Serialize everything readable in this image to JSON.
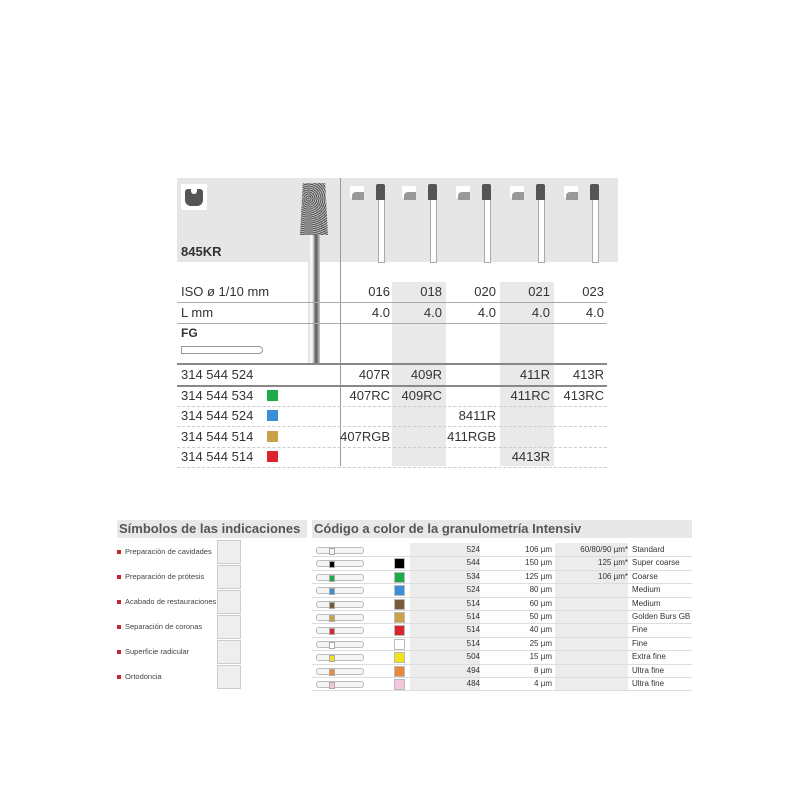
{
  "product": {
    "name": "845KR",
    "iso_label": "ISO ø 1/10 mm",
    "length_label": "L mm",
    "shank": "FG",
    "sizes": [
      "016",
      "018",
      "020",
      "021",
      "023"
    ],
    "lengths": [
      "4.0",
      "4.0",
      "4.0",
      "4.0",
      "4.0"
    ],
    "rows": [
      {
        "code": "314 544 524",
        "color": "",
        "cells": [
          "407R",
          "409R",
          "",
          "411R",
          "413R"
        ]
      },
      {
        "code": "314 544 534",
        "color": "#1faa4a",
        "cells": [
          "407RC",
          "409RC",
          "",
          "411RC",
          "413RC"
        ]
      },
      {
        "code": "314 544 524",
        "color": "#3a8fd6",
        "cells": [
          "",
          "",
          "8411R",
          "",
          ""
        ]
      },
      {
        "code": "314 544 514",
        "color": "#c9a24a",
        "cells": [
          "407RGB",
          "",
          "411RGB",
          "",
          ""
        ]
      },
      {
        "code": "314 544 514",
        "color": "#d9232d",
        "cells": [
          "",
          "",
          "",
          "4413R",
          ""
        ]
      }
    ]
  },
  "indications": {
    "title": "Símbolos de las indicaciones",
    "items": [
      "Preparación de cavidades",
      "Preparación de prótesis",
      "Acabado de restauraciones",
      "Separación de coronas",
      "Superficie radicular",
      "Ortodoncia"
    ]
  },
  "grit": {
    "title": "Código a color de la granulometría Intensiv",
    "rows": [
      {
        "color": "",
        "code": "524",
        "size": "106 µm",
        "alt": "60/80/90 µm*",
        "name": "Standard"
      },
      {
        "color": "#000000",
        "code": "544",
        "size": "150 µm",
        "alt": "125 µm*",
        "name": "Super coarse"
      },
      {
        "color": "#1faa4a",
        "code": "534",
        "size": "125 µm",
        "alt": "106 µm*",
        "name": "Coarse"
      },
      {
        "color": "#3a8fd6",
        "code": "524",
        "size": "80 µm",
        "alt": "",
        "name": "Medium"
      },
      {
        "color": "#7a5a3a",
        "code": "514",
        "size": "60 µm",
        "alt": "",
        "name": "Medium"
      },
      {
        "color": "#c9a24a",
        "code": "514",
        "size": "50 µm",
        "alt": "",
        "name": "Golden Burs GB"
      },
      {
        "color": "#d9232d",
        "code": "514",
        "size": "40 µm",
        "alt": "",
        "name": "Fine"
      },
      {
        "color": "#ffffff",
        "code": "514",
        "size": "25 µm",
        "alt": "",
        "name": "Fine"
      },
      {
        "color": "#f2e21a",
        "code": "504",
        "size": "15 µm",
        "alt": "",
        "name": "Extra fine"
      },
      {
        "color": "#e8883a",
        "code": "494",
        "size": "8 µm",
        "alt": "",
        "name": "Ultra fine"
      },
      {
        "color": "#f4c6dc",
        "code": "484",
        "size": "4 µm",
        "alt": "",
        "name": "Ultra fine"
      }
    ]
  }
}
